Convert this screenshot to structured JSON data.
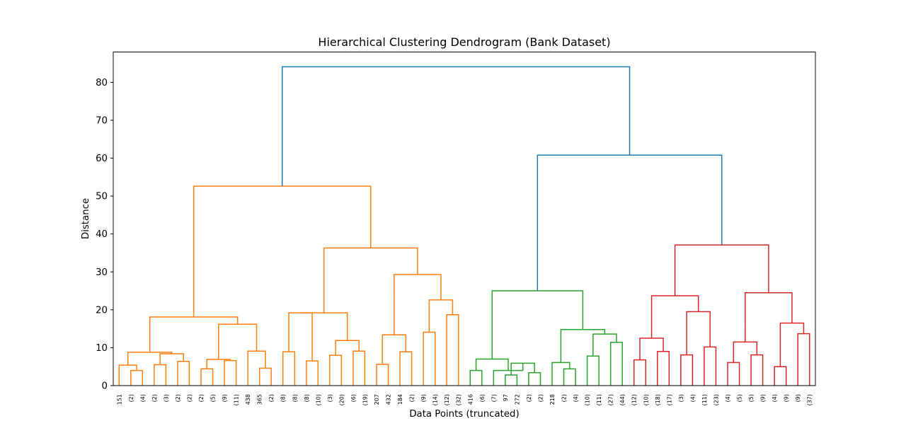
{
  "chart_data": {
    "type": "dendrogram",
    "title": "Hierarchical Clustering Dendrogram (Bank Dataset)",
    "xlabel": "Data Points (truncated)",
    "ylabel": "Distance",
    "ylim": [
      0,
      88
    ],
    "yticks": [
      0,
      10,
      20,
      30,
      40,
      50,
      60,
      70,
      80
    ],
    "grid": false,
    "colors": {
      "C1": "#ff7f0e",
      "C2": "#2ca02c",
      "C3": "#d62728",
      "above": "#1f77b4"
    },
    "leaves": [
      "151",
      "(2)",
      "(4)",
      "(2)",
      "(3)",
      "(2)",
      "(2)",
      "(2)",
      "(5)",
      "(9)",
      "(11)",
      "438",
      "365",
      "(2)",
      "(8)",
      "(8)",
      "(8)",
      "(10)",
      "(3)",
      "(20)",
      "(6)",
      "(19)",
      "207",
      "432",
      "184",
      "(2)",
      "(9)",
      "(14)",
      "(12)",
      "(32)",
      "416",
      "(6)",
      "(7)",
      "97",
      "272",
      "(2)",
      "(2)",
      "218",
      "(2)",
      "(4)",
      "(10)",
      "(11)",
      "(27)",
      "(44)",
      "(12)",
      "(10)",
      "(18)",
      "(17)",
      "(3)",
      "(4)",
      "(11)",
      "(23)",
      "(4)",
      "(5)",
      "(5)",
      "(9)",
      "(4)",
      "(9)",
      "(9)",
      "(37)"
    ],
    "merges": [
      {
        "a": 1,
        "b": 2,
        "h": 4.0,
        "color": "C1"
      },
      {
        "a": 0,
        "b": "m0",
        "h": 5.4,
        "color": "C1"
      },
      {
        "a": 3,
        "b": 4,
        "h": 5.5,
        "color": "C1"
      },
      {
        "a": 5,
        "b": 6,
        "h": 6.4,
        "color": "C1"
      },
      {
        "a": "m2",
        "b": "m3",
        "h": 8.4,
        "color": "C1"
      },
      {
        "a": "m1",
        "b": "m4",
        "h": 8.8,
        "color": "C1"
      },
      {
        "a": 7,
        "b": 8,
        "h": 4.4,
        "color": "C1"
      },
      {
        "a": 9,
        "b": 10,
        "h": 6.6,
        "color": "C1"
      },
      {
        "a": "m6",
        "b": "m7",
        "h": 6.9,
        "color": "C1"
      },
      {
        "a": 12,
        "b": 13,
        "h": 4.6,
        "color": "C1"
      },
      {
        "a": 11,
        "b": "m9",
        "h": 9.1,
        "color": "C1"
      },
      {
        "a": "m8",
        "b": "m10",
        "h": 16.2,
        "color": "C1"
      },
      {
        "a": "m5",
        "b": "m11",
        "h": 18.1,
        "color": "C1"
      },
      {
        "a": 14,
        "b": 15,
        "h": 8.9,
        "color": "C1"
      },
      {
        "a": 16,
        "b": 17,
        "h": 6.5,
        "color": "C1"
      },
      {
        "a": "m13",
        "b": "m14",
        "h": 19.2,
        "color": "C1"
      },
      {
        "a": 18,
        "b": 19,
        "h": 8.0,
        "color": "C1"
      },
      {
        "a": 20,
        "b": 21,
        "h": 9.1,
        "color": "C1"
      },
      {
        "a": "m16",
        "b": "m17",
        "h": 11.9,
        "color": "C1"
      },
      {
        "a": "m15",
        "b": "m18",
        "h": 19.2,
        "color": "C1"
      },
      {
        "a": 22,
        "b": 23,
        "h": 5.6,
        "color": "C1"
      },
      {
        "a": 24,
        "b": 25,
        "h": 8.9,
        "color": "C1"
      },
      {
        "a": "m20",
        "b": "m21",
        "h": 13.4,
        "color": "C1"
      },
      {
        "a": 26,
        "b": 27,
        "h": 14.1,
        "color": "C1"
      },
      {
        "a": 28,
        "b": 29,
        "h": 18.7,
        "color": "C1"
      },
      {
        "a": "m23",
        "b": "m24",
        "h": 22.6,
        "color": "C1"
      },
      {
        "a": "m22",
        "b": "m25",
        "h": 29.3,
        "color": "C1"
      },
      {
        "a": "m19",
        "b": "m26",
        "h": 36.3,
        "color": "C1"
      },
      {
        "a": "m12",
        "b": "m27",
        "h": 52.6,
        "color": "C1"
      },
      {
        "a": 30,
        "b": 31,
        "h": 4.0,
        "color": "C2"
      },
      {
        "a": 33,
        "b": 34,
        "h": 2.8,
        "color": "C2"
      },
      {
        "a": 35,
        "b": 36,
        "h": 3.4,
        "color": "C2"
      },
      {
        "a": "m30",
        "b": "m31",
        "h": 5.9,
        "color": "C2"
      },
      {
        "a": 32,
        "b": "m32",
        "h": 4.0,
        "color": "C2"
      },
      {
        "a": "m29",
        "b": "m33",
        "h": 7.0,
        "color": "C2"
      },
      {
        "a": 38,
        "b": 39,
        "h": 4.4,
        "color": "C2"
      },
      {
        "a": 37,
        "b": "m35",
        "h": 6.1,
        "color": "C2"
      },
      {
        "a": 40,
        "b": 41,
        "h": 7.8,
        "color": "C2"
      },
      {
        "a": 42,
        "b": 43,
        "h": 11.4,
        "color": "C2"
      },
      {
        "a": "m37",
        "b": "m38",
        "h": 13.6,
        "color": "C2"
      },
      {
        "a": "m36",
        "b": "m39",
        "h": 14.8,
        "color": "C2"
      },
      {
        "a": "m34",
        "b": "m40",
        "h": 25.0,
        "color": "C2"
      },
      {
        "a": 44,
        "b": 45,
        "h": 6.8,
        "color": "C3"
      },
      {
        "a": 46,
        "b": 47,
        "h": 9.0,
        "color": "C3"
      },
      {
        "a": "m42",
        "b": "m43",
        "h": 12.5,
        "color": "C3"
      },
      {
        "a": 48,
        "b": 49,
        "h": 8.1,
        "color": "C3"
      },
      {
        "a": 50,
        "b": 51,
        "h": 10.2,
        "color": "C3"
      },
      {
        "a": "m45",
        "b": "m46",
        "h": 19.5,
        "color": "C3"
      },
      {
        "a": "m44",
        "b": "m47",
        "h": 23.7,
        "color": "C3"
      },
      {
        "a": 52,
        "b": 53,
        "h": 6.1,
        "color": "C3"
      },
      {
        "a": 54,
        "b": 55,
        "h": 8.1,
        "color": "C3"
      },
      {
        "a": "m49",
        "b": "m50",
        "h": 11.5,
        "color": "C3"
      },
      {
        "a": 56,
        "b": 57,
        "h": 5.0,
        "color": "C3"
      },
      {
        "a": 58,
        "b": 59,
        "h": 13.7,
        "color": "C3"
      },
      {
        "a": "m52",
        "b": "m53",
        "h": 16.5,
        "color": "C3"
      },
      {
        "a": "m51",
        "b": "m54",
        "h": 24.5,
        "color": "C3"
      },
      {
        "a": "m48",
        "b": "m55",
        "h": 37.1,
        "color": "C3"
      },
      {
        "a": "m41",
        "b": "m56",
        "h": 60.8,
        "color": "above"
      },
      {
        "a": "m28",
        "b": "m57",
        "h": 84.1,
        "color": "above"
      }
    ]
  }
}
